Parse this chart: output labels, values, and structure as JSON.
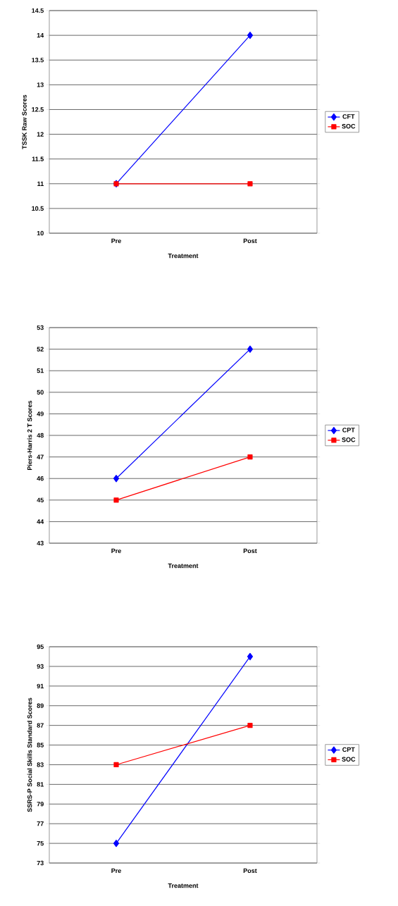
{
  "chart_data": [
    {
      "type": "line",
      "xlabel": "Treatment",
      "ylabel": "TSSK Raw Scores",
      "categories": [
        "Pre",
        "Post"
      ],
      "ylim": [
        10,
        14.5
      ],
      "yticks": [
        10,
        10.5,
        11,
        11.5,
        12,
        12.5,
        13,
        13.5,
        14,
        14.5
      ],
      "grid": "y",
      "legend": "right",
      "series": [
        {
          "name": "CFT",
          "color": "#0000ff",
          "marker": "diamond",
          "values": [
            11,
            14
          ]
        },
        {
          "name": "SOC",
          "color": "#ff0000",
          "marker": "square",
          "values": [
            11,
            11
          ]
        }
      ]
    },
    {
      "type": "line",
      "xlabel": "Treatment",
      "ylabel": "Piers-Harris 2 T Scores",
      "categories": [
        "Pre",
        "Post"
      ],
      "ylim": [
        43,
        53
      ],
      "yticks": [
        43,
        44,
        45,
        46,
        47,
        48,
        49,
        50,
        51,
        52,
        53
      ],
      "grid": "y",
      "legend": "right",
      "series": [
        {
          "name": "CPT",
          "color": "#0000ff",
          "marker": "diamond",
          "values": [
            46,
            52
          ]
        },
        {
          "name": "SOC",
          "color": "#ff0000",
          "marker": "square",
          "values": [
            45,
            47
          ]
        }
      ]
    },
    {
      "type": "line",
      "xlabel": "Treatment",
      "ylabel": "SSRS-P Social Skills Standard Scores",
      "categories": [
        "Pre",
        "Post"
      ],
      "ylim": [
        73,
        95
      ],
      "yticks": [
        73,
        75,
        77,
        79,
        81,
        83,
        85,
        87,
        89,
        91,
        93,
        95
      ],
      "grid": "y",
      "legend": "right",
      "series": [
        {
          "name": "CPT",
          "color": "#0000ff",
          "marker": "diamond",
          "values": [
            75,
            94
          ]
        },
        {
          "name": "SOC",
          "color": "#ff0000",
          "marker": "square",
          "values": [
            83,
            87
          ]
        }
      ]
    }
  ]
}
